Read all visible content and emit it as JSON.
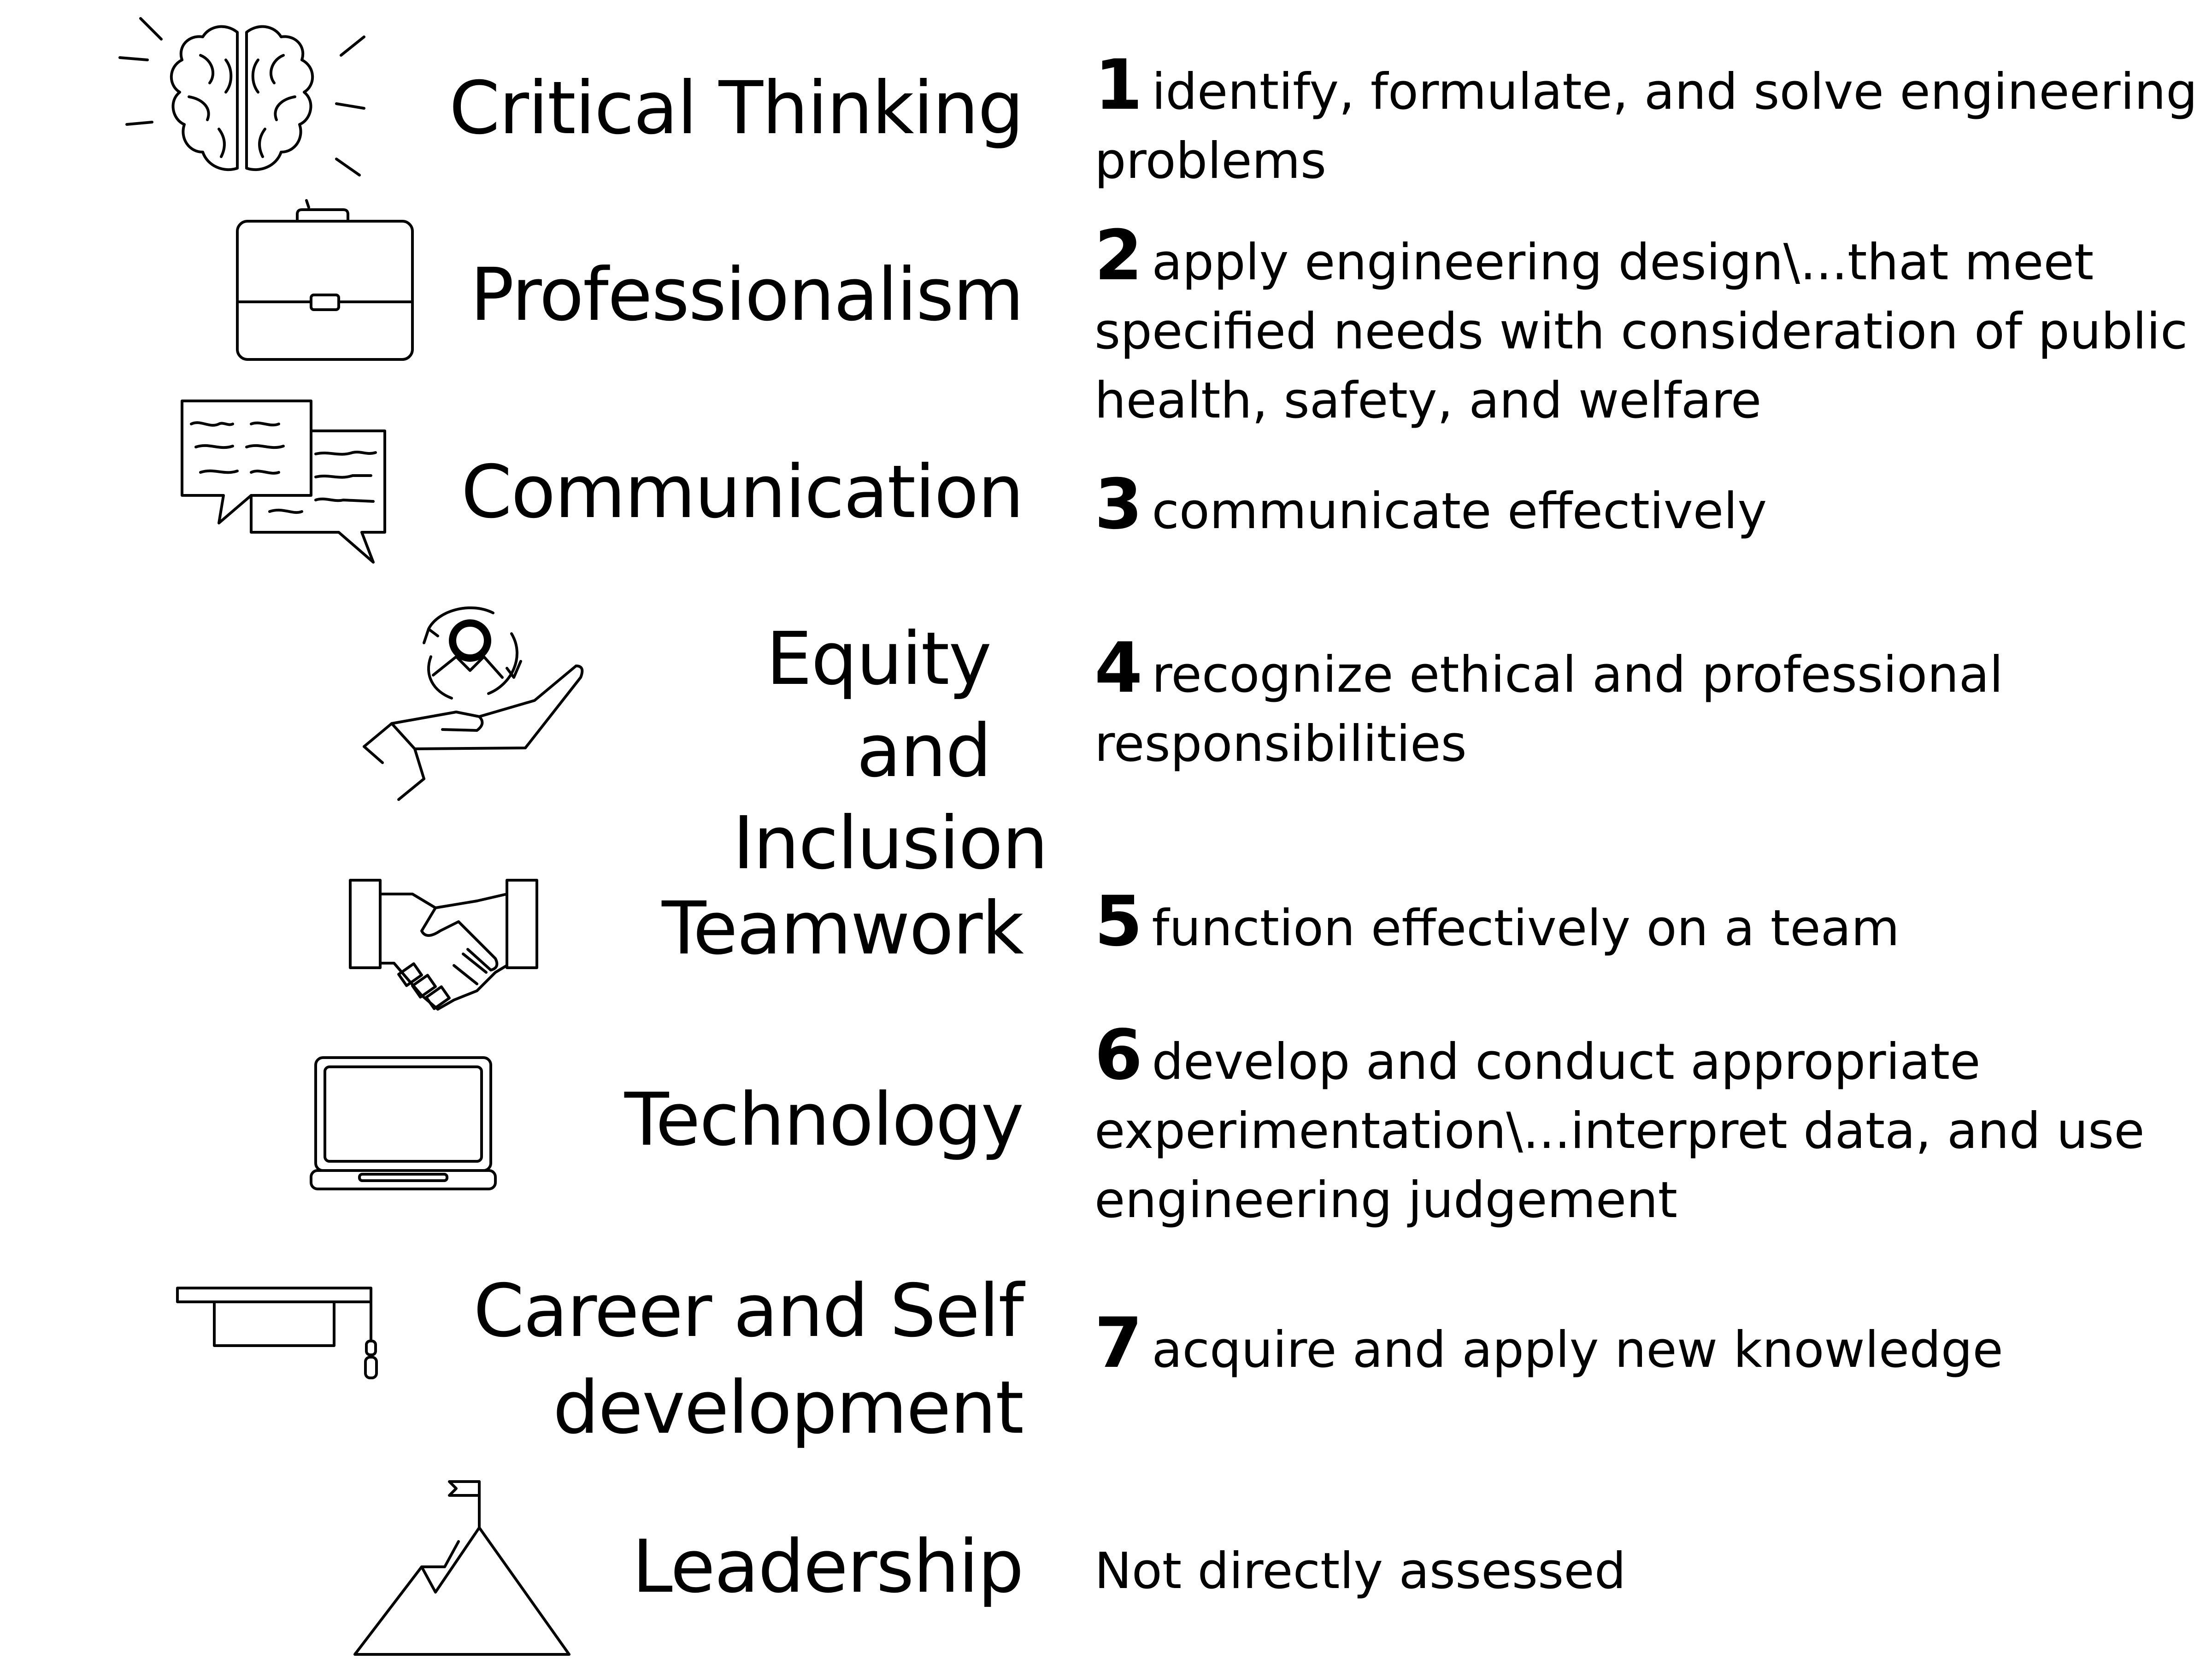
{
  "rows": [
    {
      "icon": "brain-icon",
      "label": "Critical Thinking",
      "number": "1",
      "text": "identify, formulate, and solve engineering problems"
    },
    {
      "icon": "briefcase-icon",
      "label": "Professionalism",
      "number": "2",
      "text": "apply engineering design\\...that meet specified needs with consideration of public health, safety, and welfare"
    },
    {
      "icon": "speech-bubbles-icon",
      "label": "Communication",
      "number": "3",
      "text": "communicate effectively"
    },
    {
      "icon": "hand-with-person-icon",
      "label": "Equity and Inclusion",
      "number": "4",
      "text": "recognize ethical and professional responsibilities"
    },
    {
      "icon": "handshake-icon",
      "label": "Teamwork",
      "number": "5",
      "text": "function effectively on a team"
    },
    {
      "icon": "laptop-icon",
      "label": "Technology",
      "number": "6",
      "text": "develop and conduct appropriate experimentation\\...interpret data, and use engineering judgement"
    },
    {
      "icon": "graduation-cap-icon",
      "label": "Career and Self development",
      "number": "7",
      "text": "acquire and apply new knowledge"
    },
    {
      "icon": "mountain-flag-icon",
      "label": "Leadership",
      "number": "",
      "text": "Not directly assessed"
    }
  ]
}
